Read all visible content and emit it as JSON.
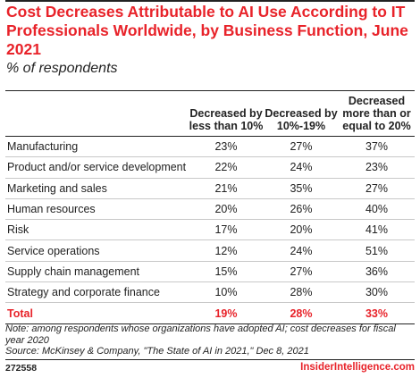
{
  "chart_data": {
    "type": "table",
    "title": "Cost Decreases Attributable to AI Use According to IT Professionals Worldwide, by Business Function, June 2021",
    "subtitle": "% of respondents",
    "columns": [
      "",
      "Decreased by less than 10%",
      "Decreased by 10%-19%",
      "Decreased more than or equal to 20%"
    ],
    "rows": [
      {
        "label": "Manufacturing",
        "values": [
          "23%",
          "27%",
          "37%"
        ]
      },
      {
        "label": "Product and/or service development",
        "values": [
          "22%",
          "24%",
          "23%"
        ]
      },
      {
        "label": "Marketing and sales",
        "values": [
          "21%",
          "35%",
          "27%"
        ]
      },
      {
        "label": "Human resources",
        "values": [
          "20%",
          "26%",
          "40%"
        ]
      },
      {
        "label": "Risk",
        "values": [
          "17%",
          "20%",
          "41%"
        ]
      },
      {
        "label": "Service operations",
        "values": [
          "12%",
          "24%",
          "51%"
        ]
      },
      {
        "label": "Supply chain management",
        "values": [
          "15%",
          "27%",
          "36%"
        ]
      },
      {
        "label": "Strategy and corporate finance",
        "values": [
          "10%",
          "28%",
          "30%"
        ]
      }
    ],
    "total": {
      "label": "Total",
      "values": [
        "19%",
        "28%",
        "33%"
      ]
    },
    "note": "Note: among respondents whose organizations have adopted AI; cost decreases for fiscal year 2020",
    "source": "Source: McKinsey & Company, \"The State of AI in 2021,\" Dec 8, 2021"
  },
  "footer": {
    "id": "272558",
    "brand": "InsiderIntelligence.com"
  },
  "colors": {
    "accent": "#e8232a",
    "text": "#222222"
  }
}
